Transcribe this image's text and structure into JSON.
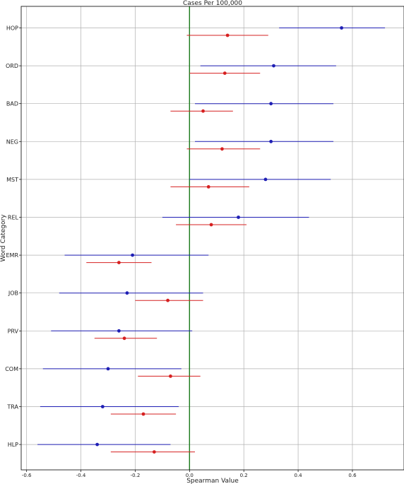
{
  "chart_data": {
    "type": "scatter",
    "title": "Cases Per 100,000",
    "xlabel": "Spearman Value",
    "ylabel": "Word Category",
    "xlim": [
      -0.62,
      0.79
    ],
    "x_ticks": [
      -0.6,
      -0.4,
      -0.2,
      0.0,
      0.2,
      0.4,
      0.6
    ],
    "x_tick_labels": [
      "-0.6",
      "-0.4",
      "-0.2",
      "0.0",
      "0.2",
      "0.4",
      "0.6"
    ],
    "grid": true,
    "reference_line_x": 0,
    "categories": [
      "HOP",
      "ORD",
      "BAD",
      "NEG",
      "MST",
      "REL",
      "EMR",
      "JOB",
      "PRV",
      "COM",
      "TRA",
      "HLP"
    ],
    "series": [
      {
        "color": "#1f1fb4",
        "values": [
          0.56,
          0.31,
          0.3,
          0.3,
          0.28,
          0.18,
          -0.21,
          -0.23,
          -0.26,
          -0.3,
          -0.32,
          -0.34
        ],
        "lower": [
          0.33,
          0.04,
          0.02,
          0.02,
          0.0,
          -0.1,
          -0.46,
          -0.48,
          -0.51,
          -0.54,
          -0.55,
          -0.56
        ],
        "upper": [
          0.72,
          0.54,
          0.53,
          0.53,
          0.52,
          0.44,
          0.07,
          0.05,
          0.01,
          -0.03,
          -0.04,
          -0.07
        ]
      },
      {
        "color": "#d62020",
        "values": [
          0.14,
          0.13,
          0.05,
          0.12,
          0.07,
          0.08,
          -0.26,
          -0.08,
          -0.24,
          -0.07,
          -0.17,
          -0.13
        ],
        "lower": [
          -0.01,
          0.0,
          -0.07,
          -0.01,
          -0.07,
          -0.05,
          -0.38,
          -0.2,
          -0.35,
          -0.19,
          -0.29,
          -0.29
        ],
        "upper": [
          0.29,
          0.26,
          0.16,
          0.26,
          0.22,
          0.21,
          -0.14,
          0.05,
          -0.12,
          0.04,
          -0.05,
          0.02
        ]
      }
    ]
  }
}
